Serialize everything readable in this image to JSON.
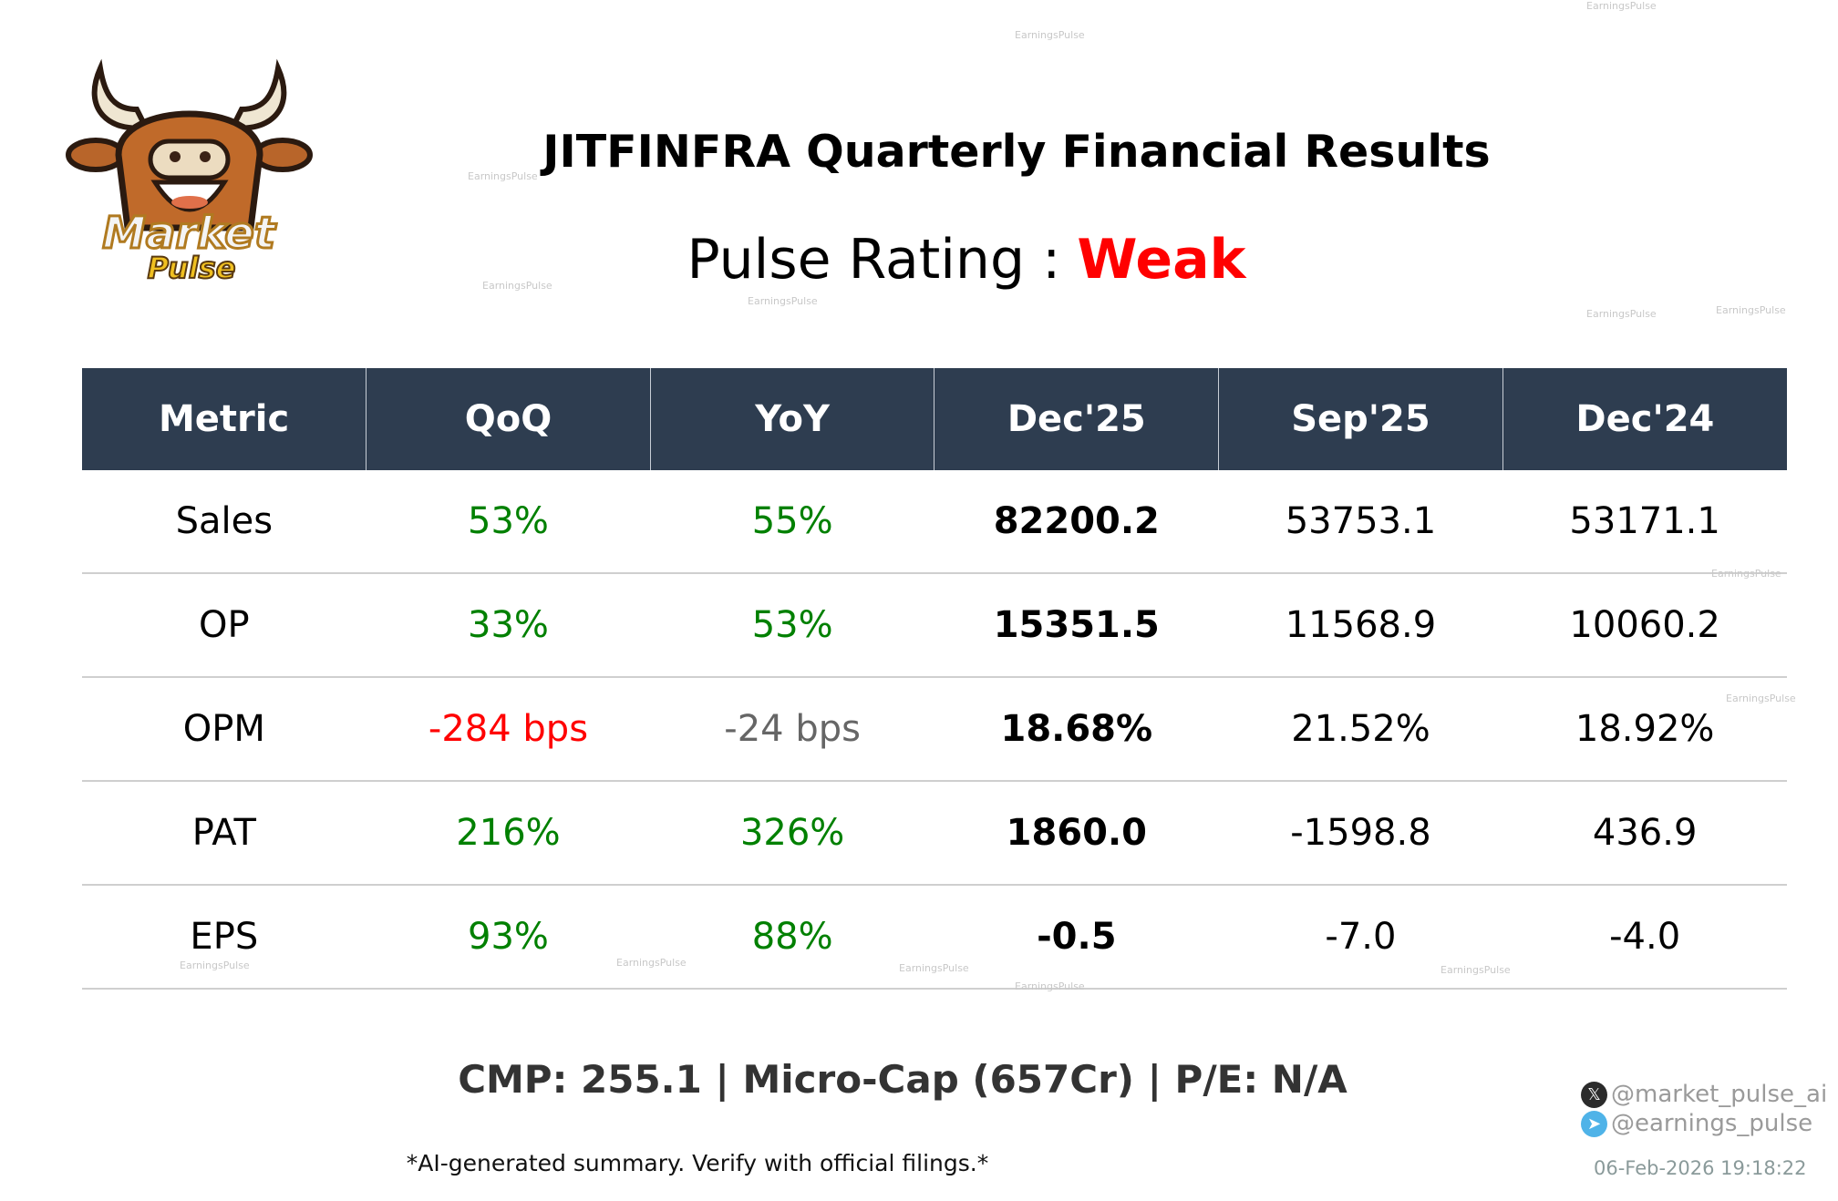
{
  "logo": {
    "text_line1": "Market",
    "text_line2": "Pulse"
  },
  "header": {
    "title": "JITFINFRA Quarterly Financial Results",
    "rating_label": "Pulse Rating :",
    "rating_value": "Weak",
    "rating_color": "#ff0000"
  },
  "table": {
    "columns": [
      "Metric",
      "QoQ",
      "YoY",
      "Dec'25",
      "Sep'25",
      "Dec'24"
    ],
    "rows": [
      {
        "metric": "Sales",
        "qoq": "53%",
        "yoy": "55%",
        "c1": "82200.2",
        "c2": "53753.1",
        "c3": "53171.1"
      },
      {
        "metric": "OP",
        "qoq": "33%",
        "yoy": "53%",
        "c1": "15351.5",
        "c2": "11568.9",
        "c3": "10060.2"
      },
      {
        "metric": "OPM",
        "qoq": "-284 bps",
        "yoy": "-24 bps",
        "c1": "18.68%",
        "c2": "21.52%",
        "c3": "18.92%"
      },
      {
        "metric": "PAT",
        "qoq": "216%",
        "yoy": "326%",
        "c1": "1860.0",
        "c2": "-1598.8",
        "c3": "436.9"
      },
      {
        "metric": "EPS",
        "qoq": "93%",
        "yoy": "88%",
        "c1": "-0.5",
        "c2": "-7.0",
        "c3": "-4.0"
      }
    ],
    "colors": {
      "positive": "#008000",
      "negative": "#ff0000",
      "neutral": "#666666",
      "header_bg": "#2e3d50"
    }
  },
  "footer": {
    "cmp": "CMP: 255.1 | Micro-Cap (657Cr) | P/E: N/A",
    "disclaimer": "*AI-generated summary. Verify with official filings.*",
    "twitter": "@market_pulse_ai",
    "telegram": "@earnings_pulse",
    "timestamp": "06-Feb-2026 19:18:22"
  },
  "watermark": "EarningsPulse"
}
